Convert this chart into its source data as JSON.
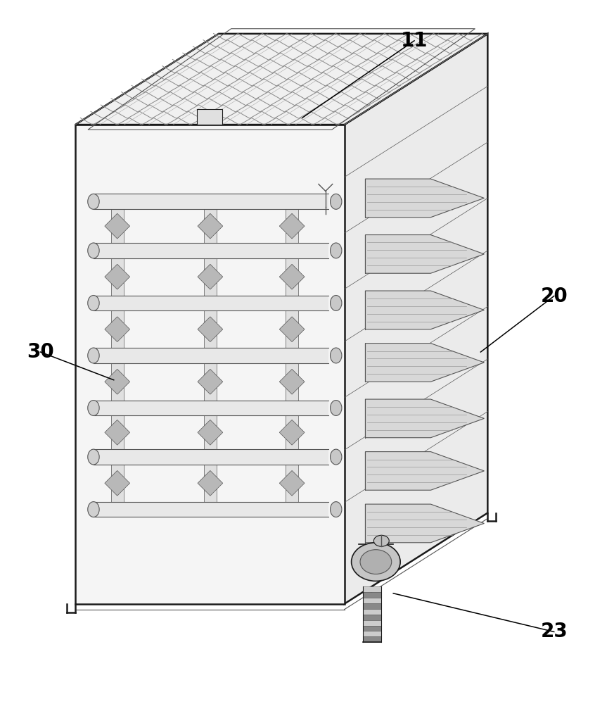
{
  "background_color": "#ffffff",
  "line_color": "#1a1a1a",
  "light_fill": "#f2f2f2",
  "mid_fill": "#e0e0e0",
  "dark_fill": "#c0c0c0",
  "darker_fill": "#a0a0a0",
  "pipe_fill": "#d8d8d8",
  "line_gray": "#555555",
  "fin_fill": "#d0d0d0",
  "label_11": "11",
  "label_20": "20",
  "label_23": "23",
  "label_30": "30",
  "figsize": [
    8.73,
    10.0
  ],
  "dpi": 100
}
